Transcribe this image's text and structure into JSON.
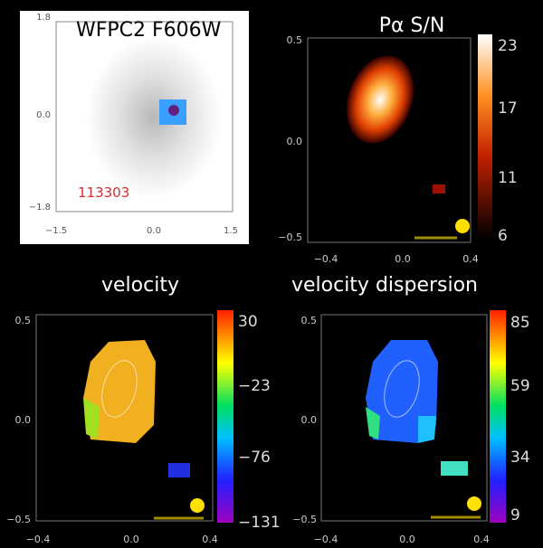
{
  "panels": [
    {
      "title": "WFPC2 F606W",
      "yticks": [
        "1.8",
        "0.0",
        "−1.8"
      ],
      "xticks": [
        "−1.5",
        "0.0",
        "1.5"
      ],
      "label": "113303"
    },
    {
      "title": "Pα S/N",
      "yticks": [
        "0.5",
        "0.0",
        "−0.5"
      ],
      "xticks": [
        "−0.4",
        "0.0",
        "0.4"
      ],
      "colorbar": [
        "23",
        "17",
        "11",
        "6"
      ]
    },
    {
      "title": "velocity",
      "yticks": [
        "0.5",
        "0.0",
        "−0.5"
      ],
      "xticks": [
        "−0.4",
        "0.0",
        "0.4"
      ],
      "colorbar": [
        "30",
        "−23",
        "−76",
        "−131"
      ]
    },
    {
      "title": "velocity dispersion",
      "yticks": [
        "0.5",
        "0.0",
        "−0.5"
      ],
      "xticks": [
        "−0.4",
        "0.0",
        "0.4"
      ],
      "colorbar": [
        "85",
        "59",
        "34",
        "9"
      ]
    }
  ]
}
